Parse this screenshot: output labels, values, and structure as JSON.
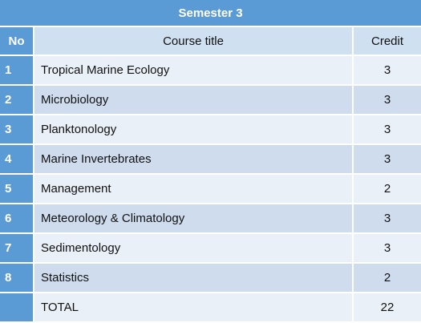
{
  "table": {
    "semester_title": "Semester 3",
    "headers": {
      "no": "No",
      "course_title": "Course title",
      "credit": "Credit"
    },
    "rows": [
      {
        "no": "1",
        "title": "Tropical Marine Ecology",
        "credit": "3"
      },
      {
        "no": "2",
        "title": "Microbiology",
        "credit": "3"
      },
      {
        "no": "3",
        "title": "Planktonology",
        "credit": "3"
      },
      {
        "no": "4",
        "title": "Marine Invertebrates",
        "credit": "3"
      },
      {
        "no": "5",
        "title": "Management",
        "credit": "2"
      },
      {
        "no": "6",
        "title": "Meteorology & Climatology",
        "credit": "3"
      },
      {
        "no": "7",
        "title": "Sedimentology",
        "credit": "3"
      },
      {
        "no": "8",
        "title": "Statistics",
        "credit": "2"
      }
    ],
    "total": {
      "no": "",
      "label": "TOTAL",
      "credit": "22"
    }
  }
}
